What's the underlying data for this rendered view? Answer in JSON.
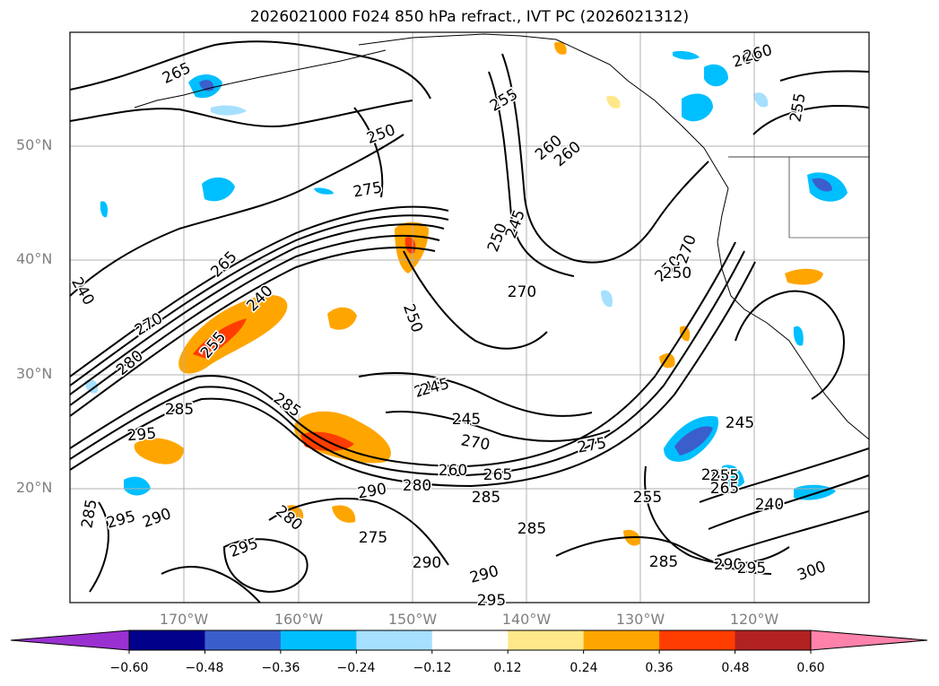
{
  "title": "2026021000 F024 850 hPa refract., IVT PC (2026021312)",
  "latitude_labels": [
    "50°N",
    "40°N",
    "30°N",
    "20°N"
  ],
  "longitude_labels": [
    "170°W",
    "160°W",
    "150°W",
    "140°W",
    "130°W",
    "120°W"
  ],
  "contour_labels": [
    "265",
    "250",
    "255",
    "260",
    "275",
    "265",
    "260",
    "270",
    "240",
    "255",
    "280",
    "285",
    "285",
    "245",
    "295",
    "290",
    "295",
    "290",
    "295",
    "250",
    "245",
    "270",
    "260",
    "265",
    "280",
    "285",
    "290",
    "275",
    "280",
    "285",
    "290",
    "295",
    "275",
    "280",
    "265",
    "255",
    "245",
    "240",
    "285",
    "290",
    "295",
    "300",
    "250",
    "250",
    "255",
    "260",
    "270",
    "250",
    "245",
    "245",
    "255",
    "270",
    "240",
    "285",
    "260"
  ],
  "colorbar": {
    "tick_labels": [
      "−0.60",
      "−0.48",
      "−0.36",
      "−0.24",
      "−0.12",
      "0.12",
      "0.24",
      "0.36",
      "0.48",
      "0.60"
    ],
    "bin_colors": [
      "#9b30d0",
      "#00008b",
      "#3a5fcd",
      "#00bfff",
      "#a6e0ff",
      "#ffffff",
      "#ffe88a",
      "#ffa500",
      "#ff3d00",
      "#b22222",
      "#ff82ab"
    ]
  },
  "colors": {
    "grid": "#b0b0b0",
    "contour": "#000000",
    "axis_label": "#808080"
  }
}
